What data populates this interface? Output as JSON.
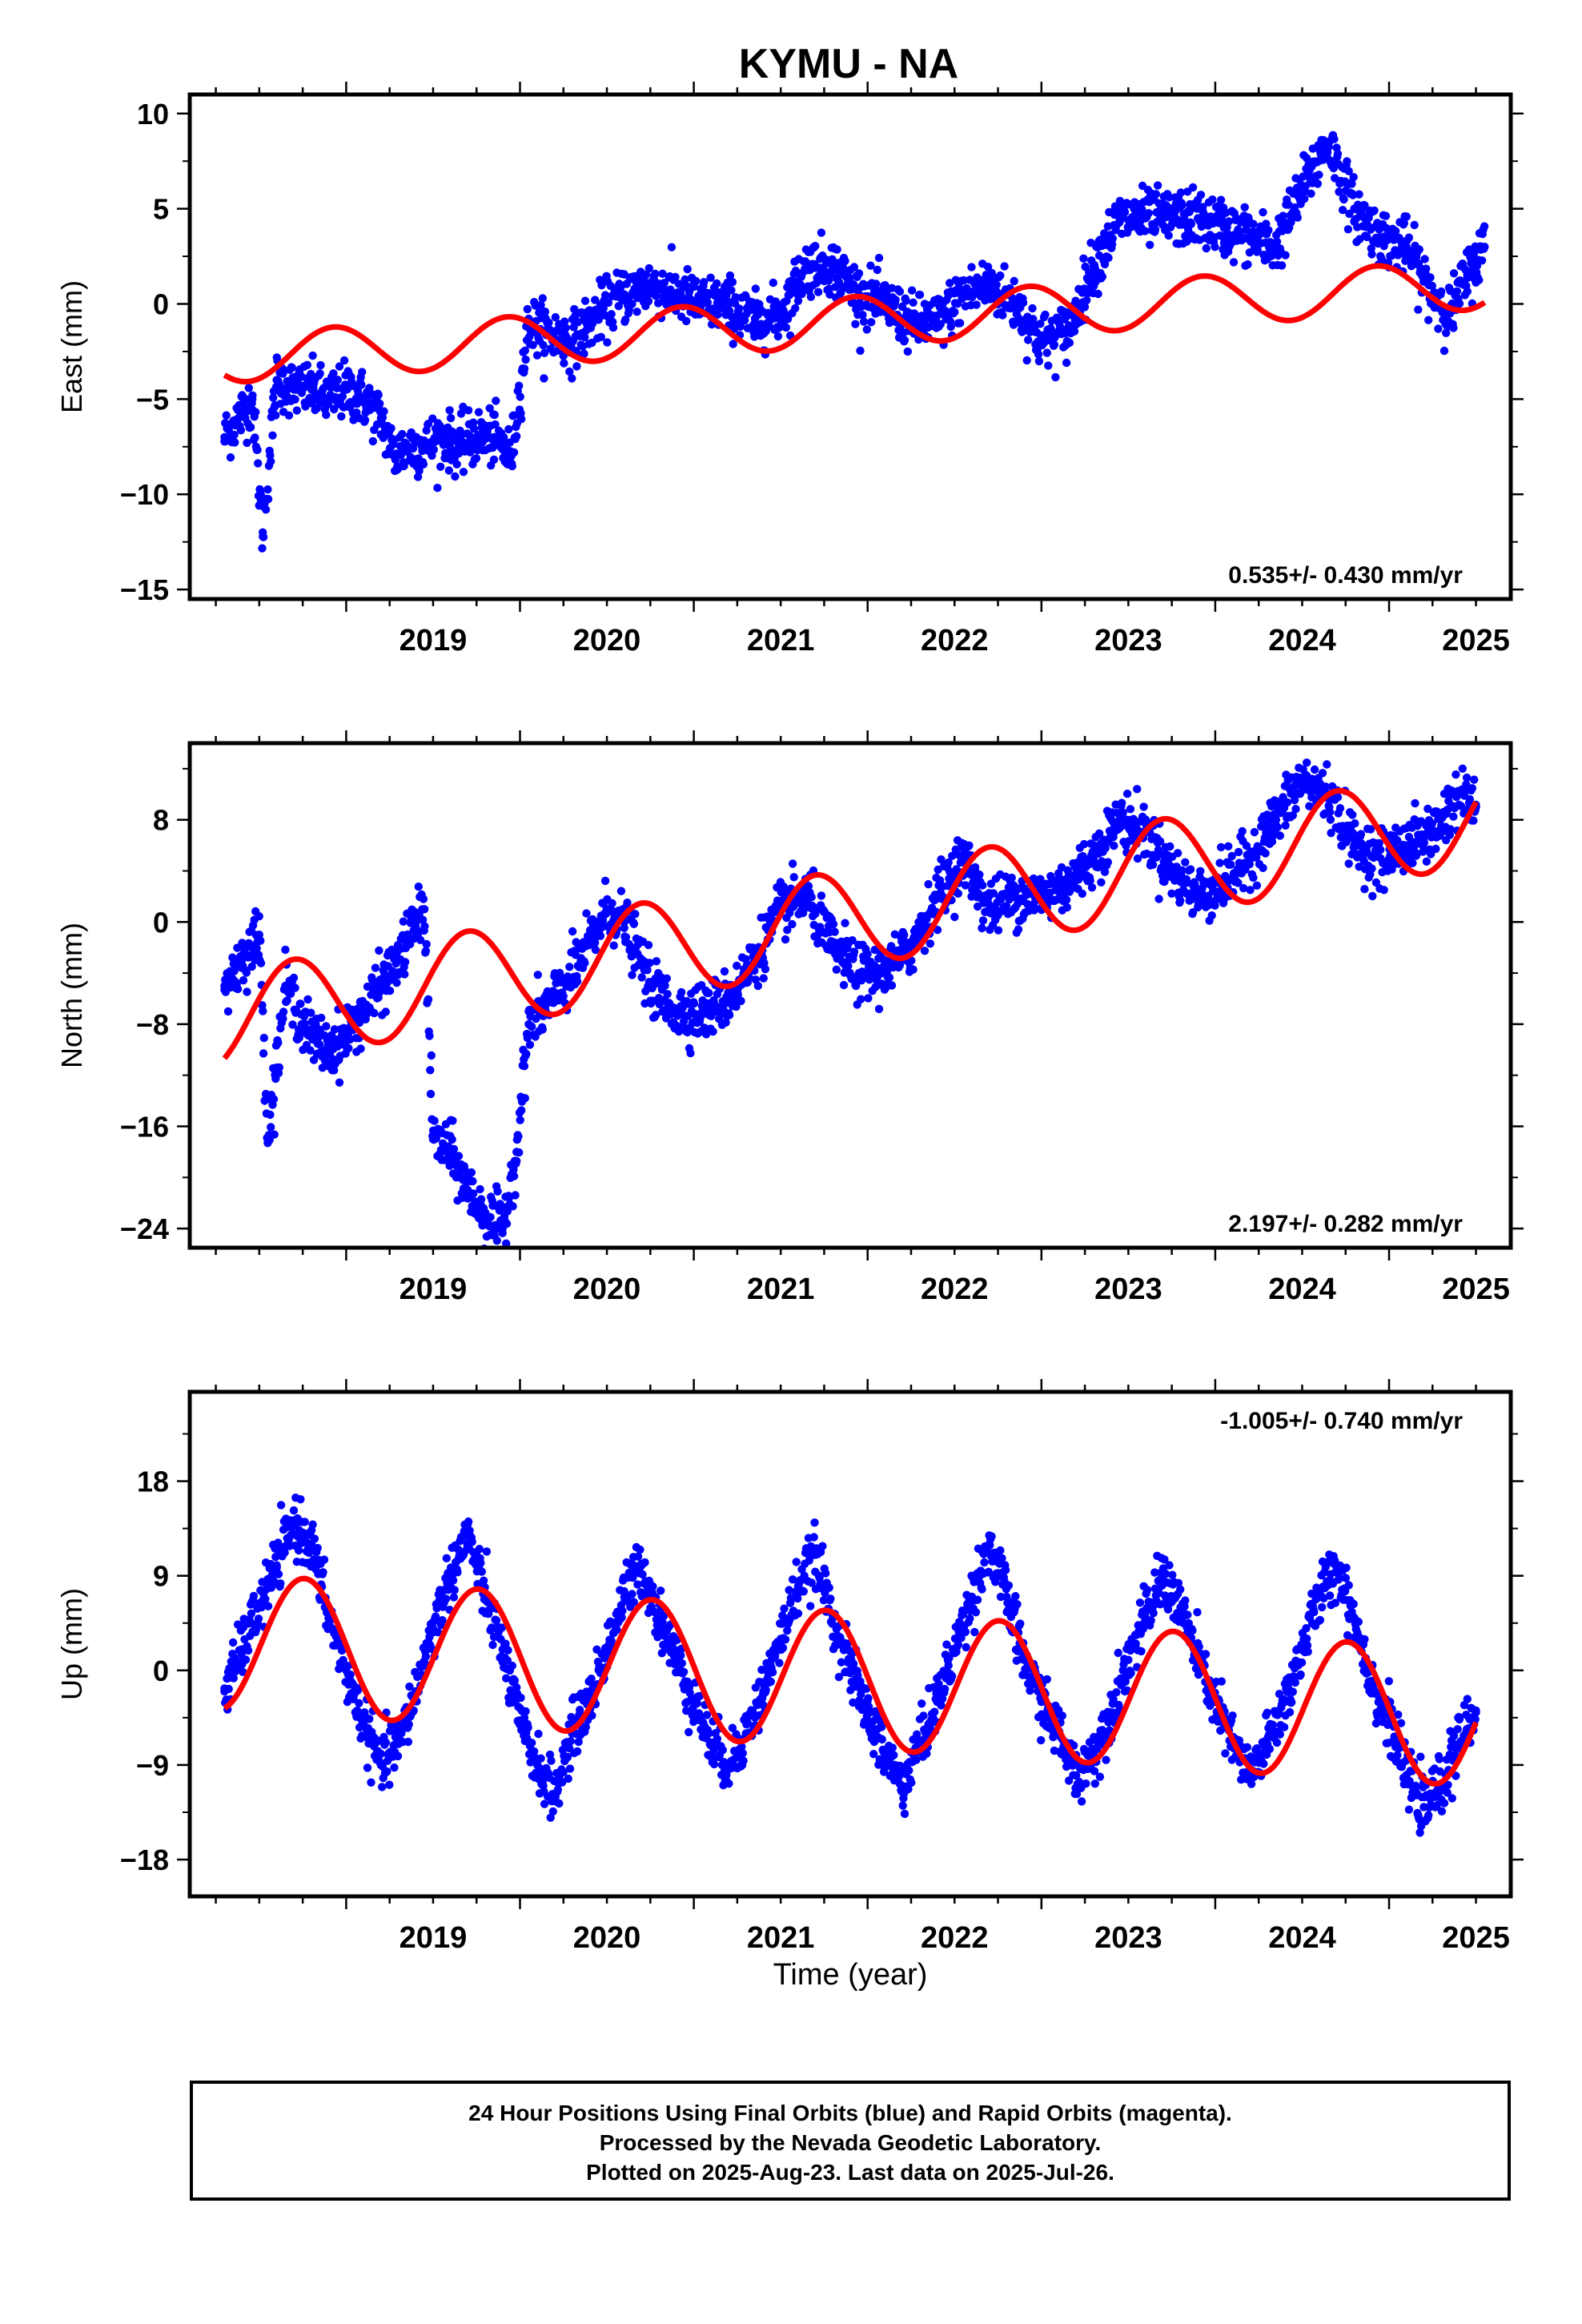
{
  "title": "KYMU - NA",
  "colors": {
    "points": "#0000ff",
    "fit": "#ff0000",
    "frame": "#000000"
  },
  "chart_data": [
    {
      "type": "scatter",
      "ylabel": "East (mm)",
      "xlabel": "",
      "xlim": [
        2018.1,
        2025.7
      ],
      "ylim": [
        -15.5,
        11
      ],
      "yticks": [
        10,
        5,
        0,
        -5,
        -10,
        -15
      ],
      "xticks": [
        2019,
        2020,
        2021,
        2022,
        2023,
        2024,
        2025
      ],
      "rate_label": "0.535+/- 0.430 mm/yr",
      "rate_position": "bottom-right",
      "series": [
        {
          "kind": "points",
          "x": [
            2018.3,
            2018.38,
            2018.46,
            2018.52,
            2018.6,
            2018.7,
            2018.8,
            2018.9,
            2019.0,
            2019.1,
            2019.2,
            2019.28,
            2019.35,
            2019.45,
            2019.55,
            2019.65,
            2019.75,
            2019.85,
            2019.95,
            2020.05,
            2020.15,
            2020.3,
            2020.45,
            2020.6,
            2020.75,
            2020.9,
            2021.05,
            2021.2,
            2021.35,
            2021.5,
            2021.65,
            2021.8,
            2021.95,
            2022.1,
            2022.25,
            2022.4,
            2022.55,
            2022.7,
            2022.85,
            2023.0,
            2023.15,
            2023.3,
            2023.45,
            2023.6,
            2023.75,
            2023.9,
            2024.05,
            2024.2,
            2024.35,
            2024.5,
            2024.65,
            2024.8,
            2024.95,
            2025.1,
            2025.25,
            2025.35,
            2025.45,
            2025.55
          ],
          "y": [
            -7,
            -6,
            -5,
            -12,
            -4,
            -4.5,
            -4.5,
            -5,
            -4.5,
            -5,
            -6,
            -8,
            -7.5,
            -7.5,
            -7,
            -7.5,
            -7,
            -7,
            -8,
            -1,
            -1.5,
            -2,
            -0.5,
            0.5,
            1,
            0.5,
            0,
            0,
            -1,
            -0.5,
            2,
            2,
            0.5,
            0,
            -1,
            -1,
            0.5,
            1,
            0,
            -2,
            -1.5,
            2,
            4.5,
            4.5,
            4.5,
            4.5,
            4,
            3.5,
            3,
            6,
            8.5,
            5,
            3.5,
            3,
            0.5,
            -0.5,
            1.5,
            3
          ]
        },
        {
          "kind": "seasonal-fit",
          "trend": {
            "t0": 2018.3,
            "y0": -2.85,
            "rate": 0.535
          },
          "amplitude": 1.3,
          "phase": 2018.68
        }
      ]
    },
    {
      "type": "scatter",
      "ylabel": "North (mm)",
      "xlabel": "",
      "xlim": [
        2018.1,
        2025.7
      ],
      "ylim": [
        -25.5,
        14
      ],
      "yticks": [
        8,
        0,
        -8,
        -16,
        -24
      ],
      "xticks": [
        2019,
        2020,
        2021,
        2022,
        2023,
        2024,
        2025
      ],
      "rate_label": "2.197+/- 0.282 mm/yr",
      "rate_position": "bottom-right",
      "series": [
        {
          "kind": "points",
          "x": [
            2018.3,
            2018.4,
            2018.5,
            2018.55,
            2018.65,
            2018.8,
            2018.9,
            2019.0,
            2019.1,
            2019.2,
            2019.3,
            2019.4,
            2019.45,
            2019.5,
            2019.6,
            2019.7,
            2019.8,
            2019.9,
            2019.98,
            2020.05,
            2020.2,
            2020.35,
            2020.5,
            2020.6,
            2020.75,
            2020.9,
            2021.05,
            2021.2,
            2021.35,
            2021.5,
            2021.65,
            2021.8,
            2021.95,
            2022.1,
            2022.25,
            2022.4,
            2022.55,
            2022.7,
            2022.85,
            2023.0,
            2023.15,
            2023.3,
            2023.45,
            2023.6,
            2023.75,
            2023.9,
            2024.05,
            2024.2,
            2024.35,
            2024.5,
            2024.65,
            2024.8,
            2024.95,
            2025.1,
            2025.25,
            2025.4,
            2025.5
          ],
          "y": [
            -5,
            -3,
            -1,
            -17,
            -5,
            -9,
            -10,
            -9,
            -7,
            -5,
            -3,
            0,
            1,
            -17,
            -18,
            -21,
            -23,
            -24,
            -18,
            -8,
            -6,
            -3,
            1,
            0,
            -5,
            -7,
            -7,
            -6,
            -3,
            1,
            2,
            -2,
            -4,
            -4,
            -2,
            2,
            5,
            1,
            2,
            2,
            3,
            5,
            8,
            7,
            4,
            2,
            3,
            5,
            8,
            11,
            10,
            6,
            5,
            6,
            7,
            10,
            9
          ]
        },
        {
          "kind": "seasonal-fit",
          "trend": {
            "t0": 2018.3,
            "y0": -7.6,
            "rate": 2.197
          },
          "amplitude": 3.8,
          "phase": 2018.45
        }
      ]
    },
    {
      "type": "scatter",
      "ylabel": "Up (mm)",
      "xlabel": "Time (year)",
      "xlim": [
        2018.1,
        2025.7
      ],
      "ylim": [
        -21.5,
        26.5
      ],
      "yticks": [
        18,
        9,
        0,
        -9,
        -18
      ],
      "xticks": [
        2019,
        2020,
        2021,
        2022,
        2023,
        2024,
        2025
      ],
      "rate_label": "-1.005+/- 0.740 mm/yr",
      "rate_position": "top-right",
      "series": [
        {
          "kind": "points",
          "x": [
            2018.3,
            2018.4,
            2018.5,
            2018.6,
            2018.7,
            2018.8,
            2018.9,
            2019.0,
            2019.1,
            2019.2,
            2019.3,
            2019.4,
            2019.5,
            2019.6,
            2019.7,
            2019.8,
            2019.9,
            2020.0,
            2020.1,
            2020.2,
            2020.3,
            2020.4,
            2020.5,
            2020.6,
            2020.7,
            2020.8,
            2020.9,
            2021.0,
            2021.1,
            2021.2,
            2021.3,
            2021.4,
            2021.5,
            2021.6,
            2021.7,
            2021.8,
            2021.9,
            2022.0,
            2022.1,
            2022.2,
            2022.3,
            2022.4,
            2022.5,
            2022.6,
            2022.7,
            2022.8,
            2022.9,
            2023.0,
            2023.1,
            2023.2,
            2023.3,
            2023.4,
            2023.5,
            2023.6,
            2023.7,
            2023.8,
            2023.9,
            2024.0,
            2024.1,
            2024.2,
            2024.3,
            2024.4,
            2024.5,
            2024.6,
            2024.7,
            2024.8,
            2024.9,
            2025.0,
            2025.1,
            2025.2,
            2025.3,
            2025.4,
            2025.5
          ],
          "y": [
            -2,
            2,
            6,
            10,
            14,
            12,
            5,
            0,
            -5,
            -9,
            -7,
            -2,
            4,
            9,
            13,
            7,
            2,
            -5,
            -9,
            -12,
            -6,
            -3,
            2,
            7,
            10,
            5,
            1,
            -3,
            -7,
            -9,
            -6,
            -2,
            3,
            8,
            11,
            5,
            0,
            -4,
            -8,
            -11,
            -7,
            -3,
            2,
            7,
            12,
            7,
            1,
            -3,
            -6,
            -10,
            -8,
            -4,
            1,
            5,
            9,
            6,
            1,
            -3,
            -7,
            -10,
            -7,
            -3,
            2,
            7,
            10,
            5,
            -1,
            -5,
            -10,
            -13,
            -11,
            -7,
            -4
          ]
        },
        {
          "kind": "seasonal-fit",
          "trend": {
            "t0": 2018.3,
            "y0": 2.7,
            "rate": -1.005
          },
          "amplitude": 6.5,
          "phase": 2018.51
        }
      ]
    }
  ],
  "footer": {
    "line1": "24 Hour Positions Using Final Orbits (blue) and Rapid Orbits (magenta).",
    "line2": "Processed by the Nevada Geodetic Laboratory.",
    "line3": "Plotted on 2025-Aug-23. Last data on 2025-Jul-26."
  }
}
